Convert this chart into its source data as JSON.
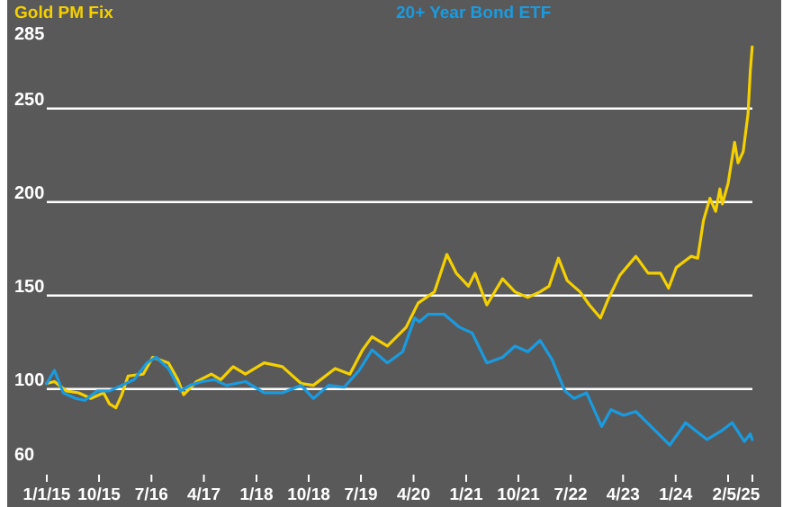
{
  "chart_data": {
    "type": "line",
    "xlim": [
      "2015-01-01",
      "2025-02-05"
    ],
    "xticks": [
      {
        "value": "2015-01-01",
        "label": "1/1/15"
      },
      {
        "value": "2015-10-01",
        "label": "10/15"
      },
      {
        "value": "2016-07-01",
        "label": "7/16"
      },
      {
        "value": "2017-04-01",
        "label": "4/17"
      },
      {
        "value": "2018-01-01",
        "label": "1/18"
      },
      {
        "value": "2018-10-01",
        "label": "10/18"
      },
      {
        "value": "2019-07-01",
        "label": "7/19"
      },
      {
        "value": "2020-04-01",
        "label": "4/20"
      },
      {
        "value": "2021-01-01",
        "label": "1/21"
      },
      {
        "value": "2021-10-01",
        "label": "10/21"
      },
      {
        "value": "2022-07-01",
        "label": "7/22"
      },
      {
        "value": "2023-04-01",
        "label": "4/23"
      },
      {
        "value": "2024-01-01",
        "label": "1/24"
      },
      {
        "value": "2024-10-01",
        "label": null
      },
      {
        "value": "2025-02-05",
        "label": "2/5/25"
      }
    ],
    "ylim": [
      60,
      285
    ],
    "yticks": [
      60,
      100,
      150,
      200,
      250,
      285
    ],
    "grid": "y",
    "legend": "top",
    "series": [
      {
        "name": "Gold PM Fix",
        "color": "#f5d000",
        "x": [
          "2015-01-01",
          "2015-02-10",
          "2015-04-13",
          "2015-06-16",
          "2015-08-19",
          "2015-10-25",
          "2015-11-25",
          "2015-12-28",
          "2016-01-28",
          "2016-03-01",
          "2016-05-19",
          "2016-07-07",
          "2016-09-28",
          "2016-11-16",
          "2016-12-16",
          "2017-02-22",
          "2017-05-10",
          "2017-06-28",
          "2017-09-01",
          "2017-11-04",
          "2018-02-10",
          "2018-05-16",
          "2018-08-22",
          "2018-10-25",
          "2019-02-16",
          "2019-05-04",
          "2019-07-10",
          "2019-08-28",
          "2019-11-16",
          "2020-02-22",
          "2020-04-25",
          "2020-07-19",
          "2020-09-22",
          "2020-11-10",
          "2021-01-13",
          "2021-02-16",
          "2021-04-19",
          "2021-07-10",
          "2021-09-13",
          "2021-11-19",
          "2022-01-22",
          "2022-03-10",
          "2022-04-28",
          "2022-06-13",
          "2022-08-19",
          "2022-10-07",
          "2022-12-04",
          "2023-01-13",
          "2023-03-16",
          "2023-06-07",
          "2023-08-10",
          "2023-10-13",
          "2023-11-25",
          "2024-01-04",
          "2024-03-22",
          "2024-04-25",
          "2024-05-25",
          "2024-06-28",
          "2024-07-28",
          "2024-08-19",
          "2024-09-01",
          "2024-10-01",
          "2024-11-04",
          "2024-11-22",
          "2024-12-19",
          "2025-01-13",
          "2025-01-25",
          "2025-02-04"
        ],
        "values": [
          103,
          104,
          99,
          98,
          95,
          98,
          92,
          90,
          97,
          107,
          108,
          117,
          114,
          105,
          97,
          104,
          108,
          105,
          112,
          108,
          114,
          112,
          103,
          102,
          111,
          108,
          121,
          128,
          123,
          133,
          146,
          152,
          172,
          162,
          155,
          162,
          145,
          159,
          152,
          149,
          152,
          155,
          170,
          158,
          152,
          145,
          138,
          148,
          161,
          171,
          162,
          162,
          154,
          165,
          171,
          170,
          190,
          202,
          195,
          207,
          199,
          210,
          232,
          221,
          227,
          247,
          270,
          283
        ]
      },
      {
        "name": "20+ Year Bond ETF",
        "color": "#1a9be0",
        "x": [
          "2015-01-01",
          "2015-02-10",
          "2015-03-28",
          "2015-06-01",
          "2015-07-19",
          "2015-09-22",
          "2015-11-25",
          "2016-01-28",
          "2016-04-01",
          "2016-06-07",
          "2016-07-25",
          "2016-09-28",
          "2016-12-01",
          "2017-01-19",
          "2017-03-22",
          "2017-05-25",
          "2017-07-28",
          "2017-11-04",
          "2018-02-10",
          "2018-05-16",
          "2018-08-22",
          "2018-10-25",
          "2019-01-13",
          "2019-04-04",
          "2019-06-22",
          "2019-08-28",
          "2019-11-16",
          "2020-02-04",
          "2020-04-07",
          "2020-05-01",
          "2020-06-16",
          "2020-09-07",
          "2020-11-28",
          "2021-02-01",
          "2021-04-19",
          "2021-07-10",
          "2021-09-13",
          "2021-11-19",
          "2022-01-22",
          "2022-03-25",
          "2022-06-01",
          "2022-07-19",
          "2022-09-22",
          "2022-12-10",
          "2023-01-28",
          "2023-04-04",
          "2023-06-07",
          "2023-08-25",
          "2023-12-01",
          "2024-02-22",
          "2024-06-13",
          "2024-09-01",
          "2024-10-22",
          "2024-12-25",
          "2025-01-25",
          "2025-02-04"
        ],
        "values": [
          103,
          110,
          98,
          95,
          94,
          99,
          99,
          102,
          105,
          114,
          117,
          111,
          99,
          102,
          104,
          105,
          102,
          104,
          98,
          98,
          102,
          95,
          102,
          101,
          110,
          121,
          114,
          120,
          138,
          136,
          140,
          140,
          133,
          130,
          114,
          117,
          123,
          120,
          126,
          116,
          99,
          95,
          98,
          80,
          89,
          86,
          88,
          80,
          70,
          82,
          73,
          78,
          82,
          72,
          76,
          73
        ]
      }
    ]
  }
}
